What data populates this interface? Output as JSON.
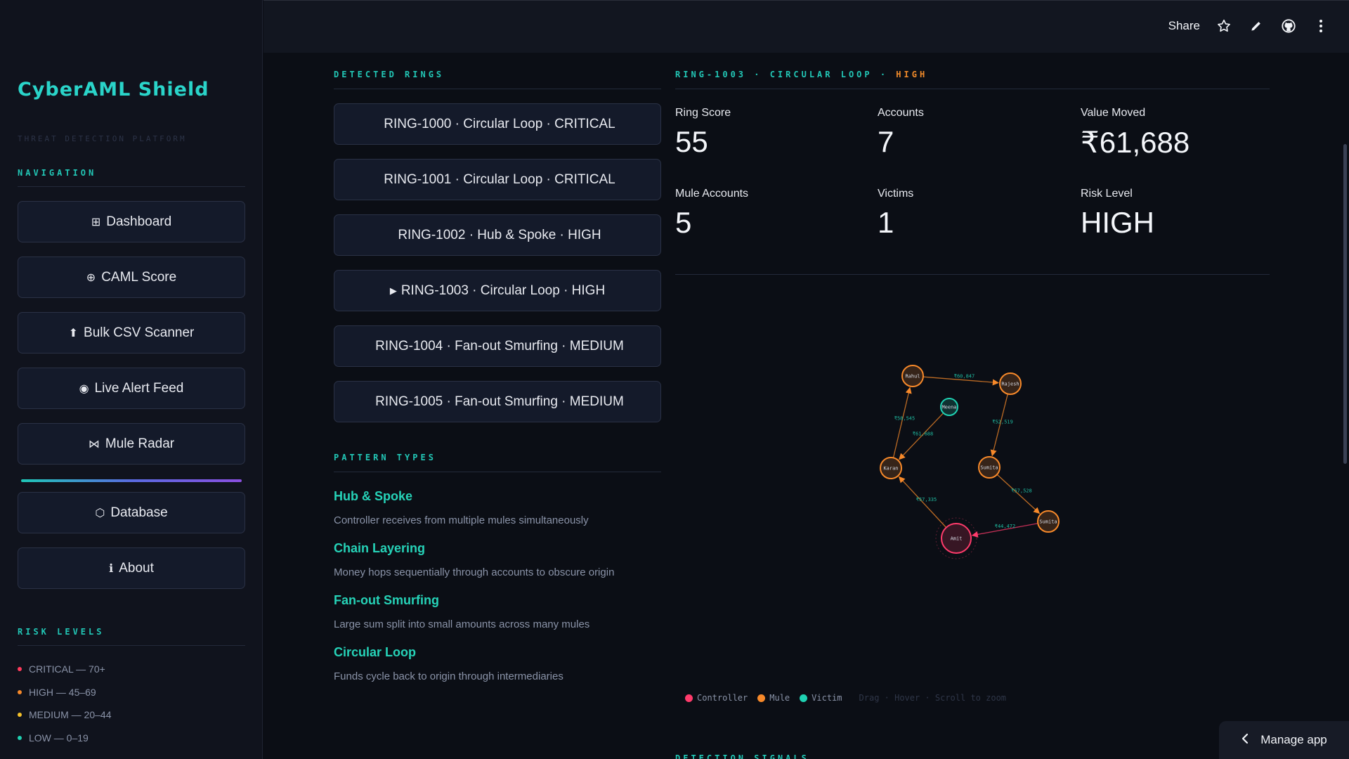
{
  "sidebar": {
    "brand": "CyberAML Shield",
    "brand_sub": "THREAT DETECTION PLATFORM",
    "nav_title": "NAVIGATION",
    "nav": [
      {
        "icon": "⊞",
        "label": "Dashboard"
      },
      {
        "icon": "⊕",
        "label": "CAML Score"
      },
      {
        "icon": "⬆",
        "label": "Bulk CSV Scanner"
      },
      {
        "icon": "◉",
        "label": "Live Alert Feed"
      },
      {
        "icon": "⋈",
        "label": "Mule Radar"
      },
      {
        "icon": "⬡",
        "label": "Database"
      },
      {
        "icon": "ℹ",
        "label": "About"
      }
    ],
    "risk_title": "RISK LEVELS",
    "risk_levels": [
      {
        "label": "CRITICAL — 70+",
        "color": "#ff3b5c"
      },
      {
        "label": "HIGH — 45–69",
        "color": "#f7892a"
      },
      {
        "label": "MEDIUM — 20–44",
        "color": "#f5c12a"
      },
      {
        "label": "LOW — 0–19",
        "color": "#1fd1b2"
      }
    ]
  },
  "topbar": {
    "share": "Share"
  },
  "rings": {
    "title": "DETECTED RINGS",
    "items": [
      {
        "prefix": "",
        "label": "RING-1000 · Circular Loop · CRITICAL"
      },
      {
        "prefix": "",
        "label": "RING-1001 · Circular Loop · CRITICAL"
      },
      {
        "prefix": "",
        "label": "RING-1002 · Hub & Spoke · HIGH"
      },
      {
        "prefix": "▶",
        "label": "RING-1003 · Circular Loop · HIGH"
      },
      {
        "prefix": "",
        "label": "RING-1004 · Fan-out Smurfing · MEDIUM"
      },
      {
        "prefix": "",
        "label": "RING-1005 · Fan-out Smurfing · MEDIUM"
      }
    ]
  },
  "patterns": {
    "title": "PATTERN TYPES",
    "items": [
      {
        "name": "Hub & Spoke",
        "desc": "Controller receives from multiple mules simultaneously"
      },
      {
        "name": "Chain Layering",
        "desc": "Money hops sequentially through accounts to obscure origin"
      },
      {
        "name": "Fan-out Smurfing",
        "desc": "Large sum split into small amounts across many mules"
      },
      {
        "name": "Circular Loop",
        "desc": "Funds cycle back to origin through intermediaries"
      }
    ]
  },
  "detail": {
    "title_main": "RING-1003 · CIRCULAR LOOP · ",
    "title_risk": "HIGH",
    "metrics": [
      {
        "label": "Ring Score",
        "value": "55"
      },
      {
        "label": "Accounts",
        "value": "7"
      },
      {
        "label": "Value Moved",
        "value": "₹61,688"
      },
      {
        "label": "Mule Accounts",
        "value": "5"
      },
      {
        "label": "Victims",
        "value": "1"
      },
      {
        "label": "Risk Level",
        "value": "HIGH"
      }
    ]
  },
  "graph": {
    "colors": {
      "controller": "#ff3b6b",
      "mule": "#f7892a",
      "victim": "#1fd1b2"
    },
    "nodes": [
      {
        "id": "rahul",
        "label": "Rahul",
        "role": "mule"
      },
      {
        "id": "rajesh",
        "label": "Rajesh",
        "role": "mule"
      },
      {
        "id": "meena",
        "label": "Meena",
        "role": "victim"
      },
      {
        "id": "karan",
        "label": "Karan",
        "role": "mule"
      },
      {
        "id": "sumita1",
        "label": "Sumita",
        "role": "mule"
      },
      {
        "id": "amit",
        "label": "Amit",
        "role": "controller"
      },
      {
        "id": "sumita2",
        "label": "Sumita",
        "role": "mule"
      }
    ],
    "edges": [
      {
        "from": "rahul",
        "to": "rajesh",
        "label": "₹60,847"
      },
      {
        "from": "rajesh",
        "to": "sumita1",
        "label": "₹52,519"
      },
      {
        "from": "sumita1",
        "to": "sumita2",
        "label": "₹57,528"
      },
      {
        "from": "sumita2",
        "to": "amit",
        "label": "₹44,472"
      },
      {
        "from": "amit",
        "to": "karan",
        "label": "₹57,335"
      },
      {
        "from": "karan",
        "to": "rahul",
        "label": "₹58,545"
      },
      {
        "from": "meena",
        "to": "karan",
        "label": "₹61,688"
      }
    ],
    "legend": [
      {
        "label": "Controller",
        "color": "#ff3b6b"
      },
      {
        "label": "Mule",
        "color": "#f7892a"
      },
      {
        "label": "Victim",
        "color": "#1fd1b2"
      }
    ],
    "hint": "Drag · Hover · Scroll to zoom"
  },
  "signals_title": "DETECTION SIGNALS",
  "manage_app": "Manage app"
}
